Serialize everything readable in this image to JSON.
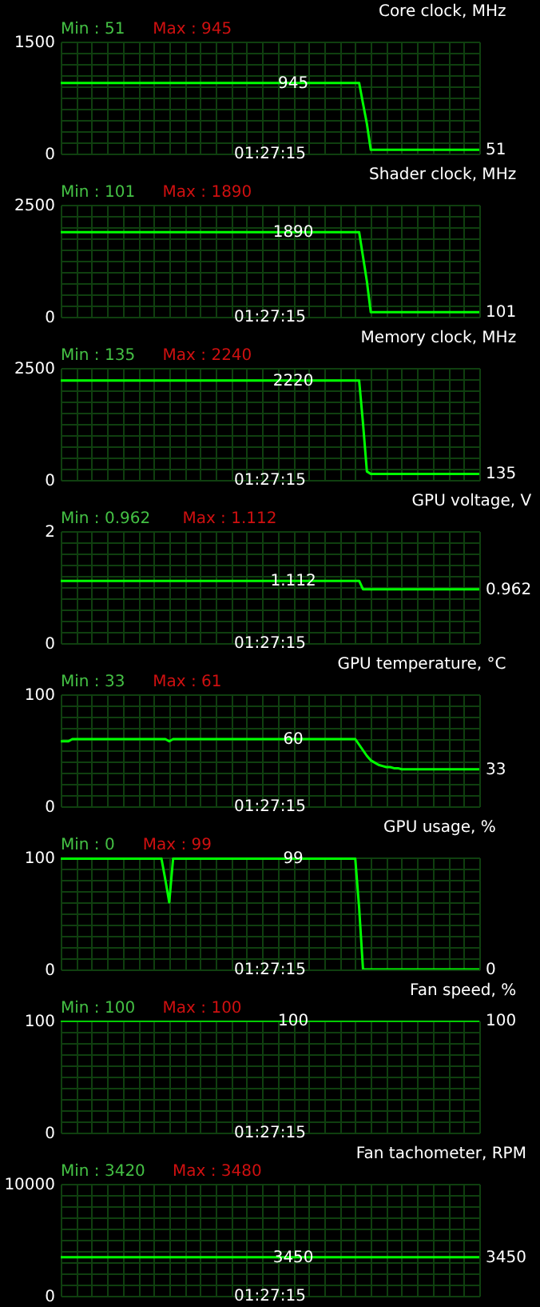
{
  "chart_data": [
    {
      "type": "line",
      "title": "Core clock, MHz",
      "annotations": [
        "Min : 51",
        "Max : 945",
        "01:27:15",
        "945",
        "51"
      ],
      "categories": [
        null,
        null,
        null,
        null,
        null,
        null,
        null,
        null,
        null,
        null,
        null,
        null,
        null,
        null,
        null,
        null,
        null,
        null,
        null,
        null,
        null,
        null,
        null,
        null,
        null,
        null,
        null,
        null,
        null,
        null,
        null,
        null,
        null,
        null,
        null,
        null,
        null,
        null,
        null,
        null,
        null,
        null,
        null,
        null,
        null,
        null,
        null,
        null,
        null,
        null,
        null,
        null,
        null,
        null,
        null,
        null,
        null,
        null,
        null,
        null,
        null,
        null,
        null,
        null,
        null,
        null,
        null,
        null,
        null,
        null,
        null,
        null,
        null,
        null,
        null,
        null,
        null,
        null,
        null,
        null,
        null,
        null,
        null,
        null,
        null,
        null,
        null,
        null,
        null,
        null,
        null,
        null,
        null,
        null,
        null,
        null,
        null,
        null,
        null,
        null,
        null,
        null,
        null,
        null,
        null,
        null,
        null,
        null,
        null
      ],
      "series": [
        {
          "color": "#00ff00",
          "values": [
            945,
            945,
            945,
            945,
            945,
            945,
            945,
            945,
            945,
            945,
            945,
            945,
            945,
            945,
            945,
            945,
            945,
            945,
            945,
            945,
            945,
            945,
            945,
            945,
            945,
            945,
            945,
            945,
            945,
            945,
            945,
            945,
            945,
            945,
            945,
            945,
            945,
            945,
            945,
            945,
            945,
            945,
            945,
            945,
            945,
            945,
            945,
            945,
            945,
            945,
            945,
            945,
            945,
            945,
            945,
            945,
            945,
            945,
            945,
            945,
            945,
            945,
            945,
            945,
            945,
            945,
            945,
            945,
            945,
            945,
            945,
            945,
            945,
            945,
            945,
            945,
            945,
            945,
            669,
            400,
            51,
            51,
            51,
            51,
            51,
            51,
            51,
            51,
            51,
            51,
            51,
            51,
            51,
            51,
            51,
            51,
            51,
            51,
            51,
            51,
            51,
            51,
            51,
            51,
            51,
            51,
            51,
            51,
            51
          ]
        }
      ],
      "ylim": [
        0,
        1500
      ],
      "yticks": [
        0,
        {
          "value": 150,
          "label": null
        },
        {
          "value": 300,
          "label": null
        },
        {
          "value": 450,
          "label": null
        },
        {
          "value": 600,
          "label": null
        },
        {
          "value": 750,
          "label": null
        },
        {
          "value": 900,
          "label": null
        },
        {
          "value": 1050,
          "label": null
        },
        {
          "value": 1200,
          "label": null
        },
        {
          "value": 1350,
          "label": null
        },
        1500
      ],
      "grid": true,
      "tick_labels": "y"
    },
    {
      "type": "line",
      "title": "Shader clock, MHz",
      "annotations": [
        "Min : 101",
        "Max : 1890",
        "01:27:15",
        "1890",
        "101"
      ],
      "categories": [
        null,
        null,
        null,
        null,
        null,
        null,
        null,
        null,
        null,
        null,
        null,
        null,
        null,
        null,
        null,
        null,
        null,
        null,
        null,
        null,
        null,
        null,
        null,
        null,
        null,
        null,
        null,
        null,
        null,
        null,
        null,
        null,
        null,
        null,
        null,
        null,
        null,
        null,
        null,
        null,
        null,
        null,
        null,
        null,
        null,
        null,
        null,
        null,
        null,
        null,
        null,
        null,
        null,
        null,
        null,
        null,
        null,
        null,
        null,
        null,
        null,
        null,
        null,
        null,
        null,
        null,
        null,
        null,
        null,
        null,
        null,
        null,
        null,
        null,
        null,
        null,
        null,
        null,
        null,
        null,
        null,
        null,
        null,
        null,
        null,
        null,
        null,
        null,
        null,
        null,
        null,
        null,
        null,
        null,
        null,
        null,
        null,
        null,
        null,
        null,
        null,
        null,
        null,
        null,
        null,
        null,
        null,
        null,
        null
      ],
      "series": [
        {
          "color": "#00ff00",
          "values": [
            1890,
            1890,
            1890,
            1890,
            1890,
            1890,
            1890,
            1890,
            1890,
            1890,
            1890,
            1890,
            1890,
            1890,
            1890,
            1890,
            1890,
            1890,
            1890,
            1890,
            1890,
            1890,
            1890,
            1890,
            1890,
            1890,
            1890,
            1890,
            1890,
            1890,
            1890,
            1890,
            1890,
            1890,
            1890,
            1890,
            1890,
            1890,
            1890,
            1890,
            1890,
            1890,
            1890,
            1890,
            1890,
            1890,
            1890,
            1890,
            1890,
            1890,
            1890,
            1890,
            1890,
            1890,
            1890,
            1890,
            1890,
            1890,
            1890,
            1890,
            1890,
            1890,
            1890,
            1890,
            1890,
            1890,
            1890,
            1890,
            1890,
            1890,
            1890,
            1890,
            1890,
            1890,
            1890,
            1890,
            1890,
            1890,
            1340,
            790,
            101,
            101,
            101,
            101,
            101,
            101,
            101,
            101,
            101,
            101,
            101,
            101,
            101,
            101,
            101,
            101,
            101,
            101,
            101,
            101,
            101,
            101,
            101,
            101,
            101,
            101,
            101,
            101,
            101
          ]
        }
      ],
      "ylim": [
        0,
        2500
      ],
      "yticks": [
        0,
        {
          "value": 250,
          "label": null
        },
        {
          "value": 500,
          "label": null
        },
        {
          "value": 750,
          "label": null
        },
        {
          "value": 1000,
          "label": null
        },
        {
          "value": 1250,
          "label": null
        },
        {
          "value": 1500,
          "label": null
        },
        {
          "value": 1750,
          "label": null
        },
        {
          "value": 2000,
          "label": null
        },
        {
          "value": 2250,
          "label": null
        },
        2500
      ],
      "grid": true,
      "tick_labels": "y"
    },
    {
      "type": "line",
      "title": "Memory clock, MHz",
      "annotations": [
        "Min : 135",
        "Max : 2240",
        "01:27:15",
        "2220",
        "135"
      ],
      "categories": [
        null,
        null,
        null,
        null,
        null,
        null,
        null,
        null,
        null,
        null,
        null,
        null,
        null,
        null,
        null,
        null,
        null,
        null,
        null,
        null,
        null,
        null,
        null,
        null,
        null,
        null,
        null,
        null,
        null,
        null,
        null,
        null,
        null,
        null,
        null,
        null,
        null,
        null,
        null,
        null,
        null,
        null,
        null,
        null,
        null,
        null,
        null,
        null,
        null,
        null,
        null,
        null,
        null,
        null,
        null,
        null,
        null,
        null,
        null,
        null,
        null,
        null,
        null,
        null,
        null,
        null,
        null,
        null,
        null,
        null,
        null,
        null,
        null,
        null,
        null,
        null,
        null,
        null,
        null,
        null,
        null,
        null,
        null,
        null,
        null,
        null,
        null,
        null,
        null,
        null,
        null,
        null,
        null,
        null,
        null,
        null,
        null,
        null,
        null,
        null,
        null,
        null,
        null,
        null,
        null,
        null,
        null,
        null,
        null
      ],
      "series": [
        {
          "color": "#00ff00",
          "values": [
            2220,
            2220,
            2220,
            2220,
            2220,
            2220,
            2220,
            2220,
            2220,
            2220,
            2220,
            2220,
            2220,
            2220,
            2220,
            2220,
            2220,
            2220,
            2220,
            2220,
            2220,
            2220,
            2220,
            2220,
            2220,
            2220,
            2220,
            2220,
            2220,
            2220,
            2220,
            2220,
            2220,
            2220,
            2220,
            2220,
            2220,
            2220,
            2220,
            2220,
            2220,
            2220,
            2220,
            2220,
            2220,
            2220,
            2220,
            2220,
            2220,
            2220,
            2220,
            2220,
            2220,
            2220,
            2220,
            2220,
            2220,
            2220,
            2220,
            2220,
            2220,
            2220,
            2220,
            2220,
            2220,
            2220,
            2220,
            2220,
            2220,
            2220,
            2220,
            2220,
            2220,
            2220,
            2220,
            2220,
            2220,
            2220,
            1260,
            190,
            135,
            135,
            135,
            135,
            135,
            135,
            135,
            135,
            135,
            135,
            135,
            135,
            135,
            135,
            135,
            135,
            135,
            135,
            135,
            135,
            135,
            135,
            135,
            135,
            135,
            135,
            135,
            135,
            135
          ]
        }
      ],
      "ylim": [
        0,
        2500
      ],
      "yticks": [
        0,
        {
          "value": 250,
          "label": null
        },
        {
          "value": 500,
          "label": null
        },
        {
          "value": 750,
          "label": null
        },
        {
          "value": 1000,
          "label": null
        },
        {
          "value": 1250,
          "label": null
        },
        {
          "value": 1500,
          "label": null
        },
        {
          "value": 1750,
          "label": null
        },
        {
          "value": 2000,
          "label": null
        },
        {
          "value": 2250,
          "label": null
        },
        2500
      ],
      "grid": true,
      "tick_labels": "y"
    },
    {
      "type": "line",
      "title": "GPU voltage, V",
      "annotations": [
        "Min : 0.962",
        "Max : 1.112",
        "01:27:15",
        "1.112",
        "0.962"
      ],
      "categories": [
        null,
        null,
        null,
        null,
        null,
        null,
        null,
        null,
        null,
        null,
        null,
        null,
        null,
        null,
        null,
        null,
        null,
        null,
        null,
        null,
        null,
        null,
        null,
        null,
        null,
        null,
        null,
        null,
        null,
        null,
        null,
        null,
        null,
        null,
        null,
        null,
        null,
        null,
        null,
        null,
        null,
        null,
        null,
        null,
        null,
        null,
        null,
        null,
        null,
        null,
        null,
        null,
        null,
        null,
        null,
        null,
        null,
        null,
        null,
        null,
        null,
        null,
        null,
        null,
        null,
        null,
        null,
        null,
        null,
        null,
        null,
        null,
        null,
        null,
        null,
        null,
        null,
        null,
        null,
        null,
        null,
        null,
        null,
        null,
        null,
        null,
        null,
        null,
        null,
        null,
        null,
        null,
        null,
        null,
        null,
        null,
        null,
        null,
        null,
        null,
        null,
        null,
        null,
        null,
        null,
        null,
        null,
        null,
        null
      ],
      "series": [
        {
          "color": "#00ff00",
          "values": [
            1.112,
            1.112,
            1.112,
            1.112,
            1.112,
            1.112,
            1.112,
            1.112,
            1.112,
            1.112,
            1.112,
            1.112,
            1.112,
            1.112,
            1.112,
            1.112,
            1.112,
            1.112,
            1.112,
            1.112,
            1.112,
            1.112,
            1.112,
            1.112,
            1.112,
            1.112,
            1.112,
            1.112,
            1.112,
            1.112,
            1.112,
            1.112,
            1.112,
            1.112,
            1.112,
            1.112,
            1.112,
            1.112,
            1.112,
            1.112,
            1.112,
            1.112,
            1.112,
            1.112,
            1.112,
            1.112,
            1.112,
            1.112,
            1.112,
            1.112,
            1.112,
            1.112,
            1.112,
            1.112,
            1.112,
            1.112,
            1.112,
            1.112,
            1.112,
            1.112,
            1.112,
            1.112,
            1.112,
            1.112,
            1.112,
            1.112,
            1.112,
            1.112,
            1.112,
            1.112,
            1.112,
            1.112,
            1.112,
            1.112,
            1.112,
            1.112,
            1.112,
            1.112,
            0.962,
            0.962,
            0.962,
            0.962,
            0.962,
            0.962,
            0.962,
            0.962,
            0.962,
            0.962,
            0.962,
            0.962,
            0.962,
            0.962,
            0.962,
            0.962,
            0.962,
            0.962,
            0.962,
            0.962,
            0.962,
            0.962,
            0.962,
            0.962,
            0.962,
            0.962,
            0.962,
            0.962,
            0.962,
            0.962,
            0.962
          ]
        }
      ],
      "ylim": [
        0,
        2
      ],
      "yticks": [
        0,
        {
          "value": 0.2,
          "label": null
        },
        {
          "value": 0.4,
          "label": null
        },
        {
          "value": 0.6,
          "label": null
        },
        {
          "value": 0.8,
          "label": null
        },
        {
          "value": 1,
          "label": null
        },
        {
          "value": 1.2,
          "label": null
        },
        {
          "value": 1.4,
          "label": null
        },
        {
          "value": 1.6,
          "label": null
        },
        {
          "value": 1.8,
          "label": null
        },
        2
      ],
      "grid": true,
      "tick_labels": "y"
    },
    {
      "type": "line",
      "title": "GPU temperature, °C",
      "annotations": [
        "Min : 33",
        "Max : 61",
        "01:27:15",
        "60",
        "33"
      ],
      "categories": [
        null,
        null,
        null,
        null,
        null,
        null,
        null,
        null,
        null,
        null,
        null,
        null,
        null,
        null,
        null,
        null,
        null,
        null,
        null,
        null,
        null,
        null,
        null,
        null,
        null,
        null,
        null,
        null,
        null,
        null,
        null,
        null,
        null,
        null,
        null,
        null,
        null,
        null,
        null,
        null,
        null,
        null,
        null,
        null,
        null,
        null,
        null,
        null,
        null,
        null,
        null,
        null,
        null,
        null,
        null,
        null,
        null,
        null,
        null,
        null,
        null,
        null,
        null,
        null,
        null,
        null,
        null,
        null,
        null,
        null,
        null,
        null,
        null,
        null,
        null,
        null,
        null,
        null,
        null,
        null,
        null,
        null,
        null,
        null,
        null,
        null,
        null,
        null,
        null,
        null,
        null,
        null,
        null,
        null,
        null,
        null,
        null,
        null,
        null,
        null,
        null,
        null,
        null,
        null,
        null,
        null,
        null,
        null,
        null
      ],
      "series": [
        {
          "color": "#00ff00",
          "values": [
            58,
            58,
            58,
            60,
            60,
            60,
            60,
            60,
            60,
            60,
            60,
            60,
            60,
            60,
            60,
            60,
            60,
            60,
            60,
            60,
            60,
            60,
            60,
            60,
            60,
            60,
            60,
            60,
            58,
            60,
            60,
            60,
            60,
            60,
            60,
            60,
            60,
            60,
            60,
            60,
            60,
            60,
            60,
            60,
            60,
            60,
            60,
            60,
            60,
            60,
            60,
            60,
            60,
            60,
            60,
            60,
            60,
            60,
            60,
            60,
            60,
            60,
            60,
            60,
            60,
            60,
            60,
            60,
            60,
            60,
            60,
            60,
            60,
            60,
            60,
            60,
            60,
            55,
            50,
            45,
            41,
            39,
            37,
            36,
            35,
            35,
            34,
            34,
            33,
            33,
            33,
            33,
            33,
            33,
            33,
            33,
            33,
            33,
            33,
            33,
            33,
            33,
            33,
            33,
            33,
            33,
            33,
            33,
            33
          ]
        }
      ],
      "ylim": [
        0,
        100
      ],
      "yticks": [
        0,
        {
          "value": 10,
          "label": null
        },
        {
          "value": 20,
          "label": null
        },
        {
          "value": 30,
          "label": null
        },
        {
          "value": 40,
          "label": null
        },
        {
          "value": 50,
          "label": null
        },
        {
          "value": 60,
          "label": null
        },
        {
          "value": 70,
          "label": null
        },
        {
          "value": 80,
          "label": null
        },
        {
          "value": 90,
          "label": null
        },
        100
      ],
      "grid": true,
      "tick_labels": "y"
    },
    {
      "type": "line",
      "title": "GPU usage, %",
      "annotations": [
        "Min : 0",
        "Max : 99",
        "01:27:15",
        "99",
        "0"
      ],
      "categories": [
        null,
        null,
        null,
        null,
        null,
        null,
        null,
        null,
        null,
        null,
        null,
        null,
        null,
        null,
        null,
        null,
        null,
        null,
        null,
        null,
        null,
        null,
        null,
        null,
        null,
        null,
        null,
        null,
        null,
        null,
        null,
        null,
        null,
        null,
        null,
        null,
        null,
        null,
        null,
        null,
        null,
        null,
        null,
        null,
        null,
        null,
        null,
        null,
        null,
        null,
        null,
        null,
        null,
        null,
        null,
        null,
        null,
        null,
        null,
        null,
        null,
        null,
        null,
        null,
        null,
        null,
        null,
        null,
        null,
        null,
        null,
        null,
        null,
        null,
        null,
        null,
        null,
        null,
        null,
        null,
        null,
        null,
        null,
        null,
        null,
        null,
        null,
        null,
        null,
        null,
        null,
        null,
        null,
        null,
        null,
        null,
        null,
        null,
        null,
        null,
        null,
        null,
        null,
        null,
        null,
        null,
        null,
        null,
        null
      ],
      "series": [
        {
          "color": "#00ff00",
          "values": [
            99,
            99,
            99,
            99,
            99,
            99,
            99,
            99,
            99,
            99,
            99,
            99,
            99,
            99,
            99,
            99,
            99,
            99,
            99,
            99,
            99,
            99,
            99,
            99,
            99,
            99,
            99,
            80,
            60,
            99,
            99,
            99,
            99,
            99,
            99,
            99,
            99,
            99,
            99,
            99,
            99,
            99,
            99,
            99,
            99,
            99,
            99,
            99,
            99,
            99,
            99,
            99,
            99,
            99,
            99,
            99,
            99,
            99,
            99,
            99,
            99,
            99,
            99,
            99,
            99,
            99,
            99,
            99,
            99,
            99,
            99,
            99,
            99,
            99,
            99,
            99,
            99,
            55,
            0,
            0,
            0,
            0,
            0,
            0,
            0,
            0,
            0,
            0,
            0,
            0,
            0,
            0,
            0,
            0,
            0,
            0,
            0,
            0,
            0,
            0,
            0,
            0,
            0,
            0,
            0,
            0,
            0,
            0,
            0
          ]
        }
      ],
      "ylim": [
        0,
        100
      ],
      "yticks": [
        0,
        {
          "value": 10,
          "label": null
        },
        {
          "value": 20,
          "label": null
        },
        {
          "value": 30,
          "label": null
        },
        {
          "value": 40,
          "label": null
        },
        {
          "value": 50,
          "label": null
        },
        {
          "value": 60,
          "label": null
        },
        {
          "value": 70,
          "label": null
        },
        {
          "value": 80,
          "label": null
        },
        {
          "value": 90,
          "label": null
        },
        100
      ],
      "grid": true,
      "tick_labels": "y"
    },
    {
      "type": "line",
      "title": "Fan speed, %",
      "annotations": [
        "Min : 100",
        "Max : 100",
        "01:27:15",
        "100",
        "100"
      ],
      "categories": [
        null,
        null,
        null,
        null,
        null,
        null,
        null,
        null,
        null,
        null,
        null,
        null,
        null,
        null,
        null,
        null,
        null,
        null,
        null,
        null,
        null,
        null,
        null,
        null,
        null,
        null,
        null,
        null,
        null,
        null,
        null,
        null,
        null,
        null,
        null,
        null,
        null,
        null,
        null,
        null,
        null,
        null,
        null,
        null,
        null,
        null,
        null,
        null,
        null,
        null,
        null,
        null,
        null,
        null,
        null,
        null,
        null,
        null,
        null,
        null,
        null,
        null,
        null,
        null,
        null,
        null,
        null,
        null,
        null,
        null,
        null,
        null,
        null,
        null,
        null,
        null,
        null,
        null,
        null,
        null,
        null,
        null,
        null,
        null,
        null,
        null,
        null,
        null,
        null,
        null,
        null,
        null,
        null,
        null,
        null,
        null,
        null,
        null,
        null,
        null,
        null,
        null,
        null,
        null,
        null,
        null,
        null,
        null,
        null
      ],
      "series": [
        {
          "color": "#00ff00",
          "values": [
            100,
            100,
            100,
            100,
            100,
            100,
            100,
            100,
            100,
            100,
            100,
            100,
            100,
            100,
            100,
            100,
            100,
            100,
            100,
            100,
            100,
            100,
            100,
            100,
            100,
            100,
            100,
            100,
            100,
            100,
            100,
            100,
            100,
            100,
            100,
            100,
            100,
            100,
            100,
            100,
            100,
            100,
            100,
            100,
            100,
            100,
            100,
            100,
            100,
            100,
            100,
            100,
            100,
            100,
            100,
            100,
            100,
            100,
            100,
            100,
            100,
            100,
            100,
            100,
            100,
            100,
            100,
            100,
            100,
            100,
            100,
            100,
            100,
            100,
            100,
            100,
            100,
            100,
            100,
            100,
            100,
            100,
            100,
            100,
            100,
            100,
            100,
            100,
            100,
            100,
            100,
            100,
            100,
            100,
            100,
            100,
            100,
            100,
            100,
            100,
            100,
            100,
            100,
            100,
            100,
            100,
            100,
            100,
            100
          ]
        }
      ],
      "ylim": [
        0,
        100
      ],
      "yticks": [
        0,
        {
          "value": 10,
          "label": null
        },
        {
          "value": 20,
          "label": null
        },
        {
          "value": 30,
          "label": null
        },
        {
          "value": 40,
          "label": null
        },
        {
          "value": 50,
          "label": null
        },
        {
          "value": 60,
          "label": null
        },
        {
          "value": 70,
          "label": null
        },
        {
          "value": 80,
          "label": null
        },
        {
          "value": 90,
          "label": null
        },
        100
      ],
      "grid": true,
      "tick_labels": "y"
    },
    {
      "type": "line",
      "title": "Fan tachometer, RPM",
      "annotations": [
        "Min : 3420",
        "Max : 3480",
        "01:27:15",
        "3450",
        "3450"
      ],
      "categories": [
        null,
        null,
        null,
        null,
        null,
        null,
        null,
        null,
        null,
        null,
        null,
        null,
        null,
        null,
        null,
        null,
        null,
        null,
        null,
        null,
        null,
        null,
        null,
        null,
        null,
        null,
        null,
        null,
        null,
        null,
        null,
        null,
        null,
        null,
        null,
        null,
        null,
        null,
        null,
        null,
        null,
        null,
        null,
        null,
        null,
        null,
        null,
        null,
        null,
        null,
        null,
        null,
        null,
        null,
        null,
        null,
        null,
        null,
        null,
        null,
        null,
        null,
        null,
        null,
        null,
        null,
        null,
        null,
        null,
        null,
        null,
        null,
        null,
        null,
        null,
        null,
        null,
        null,
        null,
        null,
        null,
        null,
        null,
        null,
        null,
        null,
        null,
        null,
        null,
        null,
        null,
        null,
        null,
        null,
        null,
        null,
        null,
        null,
        null,
        null,
        null,
        null,
        null,
        null,
        null,
        null,
        null,
        null,
        null
      ],
      "series": [
        {
          "color": "#00ff00",
          "values": [
            3450,
            3450,
            3450,
            3450,
            3450,
            3450,
            3450,
            3450,
            3450,
            3450,
            3450,
            3450,
            3450,
            3450,
            3450,
            3450,
            3450,
            3450,
            3450,
            3450,
            3450,
            3450,
            3450,
            3450,
            3450,
            3450,
            3450,
            3450,
            3450,
            3450,
            3450,
            3450,
            3450,
            3450,
            3450,
            3450,
            3450,
            3450,
            3450,
            3450,
            3450,
            3450,
            3450,
            3450,
            3450,
            3450,
            3450,
            3450,
            3450,
            3450,
            3450,
            3450,
            3450,
            3450,
            3450,
            3450,
            3450,
            3450,
            3450,
            3450,
            3450,
            3450,
            3450,
            3450,
            3450,
            3450,
            3450,
            3450,
            3450,
            3450,
            3450,
            3450,
            3450,
            3450,
            3450,
            3450,
            3450,
            3450,
            3450,
            3450,
            3450,
            3450,
            3450,
            3450,
            3450,
            3450,
            3450,
            3450,
            3450,
            3450,
            3450,
            3450,
            3450,
            3450,
            3450,
            3450,
            3450,
            3450,
            3450,
            3450,
            3450,
            3450,
            3450,
            3450,
            3450,
            3450,
            3450,
            3450,
            3450
          ]
        }
      ],
      "ylim": [
        0,
        10000
      ],
      "yticks": [
        0,
        {
          "value": 1000,
          "label": null
        },
        {
          "value": 2000,
          "label": null
        },
        {
          "value": 3000,
          "label": null
        },
        {
          "value": 4000,
          "label": null
        },
        {
          "value": 5000,
          "label": null
        },
        {
          "value": 6000,
          "label": null
        },
        {
          "value": 7000,
          "label": null
        },
        {
          "value": 8000,
          "label": null
        },
        {
          "value": 9000,
          "label": null
        },
        10000
      ],
      "grid": true,
      "tick_labels": "y"
    }
  ]
}
